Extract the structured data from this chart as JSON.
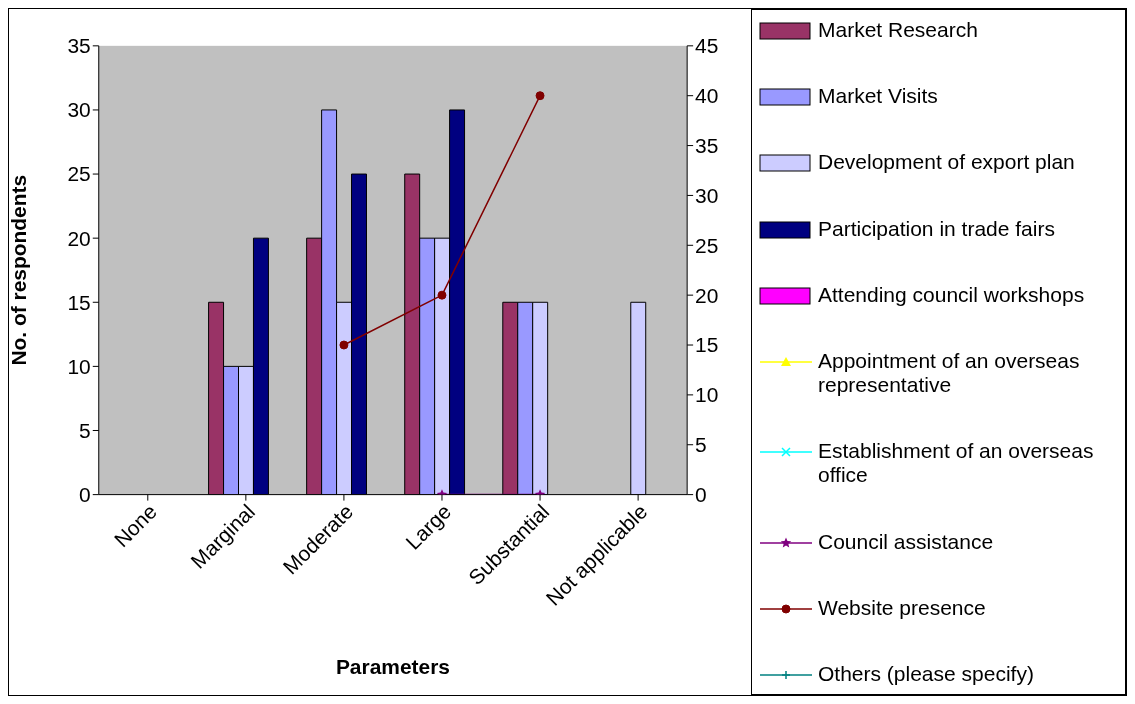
{
  "chart_data": {
    "type": "bar",
    "xlabel": "Parameters",
    "ylabel": "No. of respondents",
    "categories": [
      "None",
      "Marginal",
      "Moderate",
      "Large",
      "Substantial",
      "Not applicable"
    ],
    "ylim": [
      0,
      35
    ],
    "yticks": [
      0,
      5,
      10,
      15,
      20,
      25,
      30,
      35
    ],
    "y2lim": [
      0,
      45
    ],
    "y2ticks": [
      0,
      5,
      10,
      15,
      20,
      25,
      30,
      35,
      40,
      45
    ],
    "legend": "right",
    "series": [
      {
        "name": "Market Research",
        "color": "#993366",
        "values": [
          null,
          15,
          20,
          25,
          15,
          null
        ]
      },
      {
        "name": "Market Visits",
        "color": "#9999ff",
        "values": [
          null,
          10,
          30,
          20,
          15,
          null
        ]
      },
      {
        "name": "Development of export plan",
        "color": "#ccccff",
        "values": [
          null,
          10,
          15,
          20,
          15,
          15
        ]
      },
      {
        "name": "Participation in trade fairs",
        "color": "#000080",
        "values": [
          null,
          20,
          25,
          30,
          null,
          null
        ]
      },
      {
        "name": "Attending council workshops",
        "color": "#ff00ff",
        "values": [
          null,
          null,
          null,
          null,
          null,
          null
        ]
      },
      {
        "name": "Appointment of an overseas representative",
        "type": "line",
        "axis": "y2",
        "marker": "triangle",
        "color": "#ffff00",
        "values": [
          null,
          null,
          null,
          null,
          null,
          null
        ]
      },
      {
        "name": "Establishment of an overseas office",
        "type": "line",
        "axis": "y2",
        "marker": "cross",
        "color": "#00ffff",
        "values": [
          null,
          null,
          null,
          null,
          null,
          null
        ]
      },
      {
        "name": "Council assistance",
        "type": "line",
        "axis": "y2",
        "marker": "star",
        "color": "#800080",
        "values": [
          null,
          null,
          null,
          0,
          0,
          null
        ]
      },
      {
        "name": "Website presence",
        "type": "line",
        "axis": "y2",
        "marker": "circle",
        "color": "#800000",
        "values": [
          null,
          null,
          15,
          20,
          40,
          null
        ]
      },
      {
        "name": "Others (please specify)",
        "type": "line",
        "axis": "y2",
        "marker": "plus",
        "color": "#008080",
        "values": [
          null,
          null,
          null,
          null,
          null,
          null
        ]
      }
    ]
  }
}
